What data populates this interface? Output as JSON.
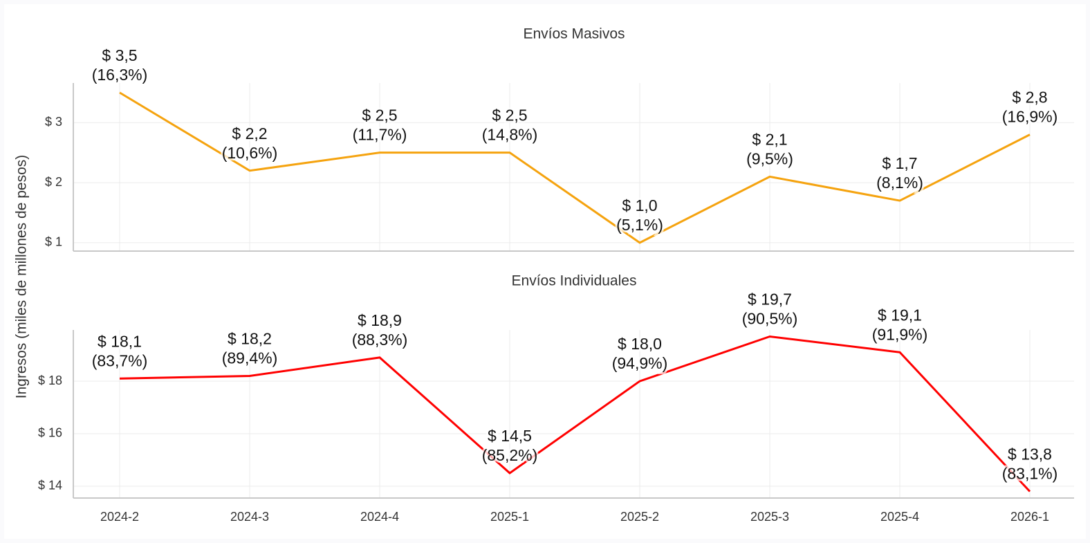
{
  "ylabel": "Ingresos (miles de millones de pesos)",
  "chart_data": [
    {
      "type": "line",
      "title": "Envíos Masivos",
      "categories": [
        "2024-2",
        "2024-3",
        "2024-4",
        "2025-1",
        "2025-2",
        "2025-3",
        "2025-4",
        "2026-1"
      ],
      "series": [
        {
          "name": "Envíos Masivos",
          "color": "#f5a30f",
          "values": [
            3.5,
            2.2,
            2.5,
            2.5,
            1.0,
            2.1,
            1.7,
            2.8
          ],
          "value_labels": [
            "$ 3,5",
            "$ 2,2",
            "$ 2,5",
            "$ 2,5",
            "$ 1,0",
            "$ 2,1",
            "$ 1,7",
            "$ 2,8"
          ],
          "share_labels": [
            "(16,3%)",
            "(10,6%)",
            "(11,7%)",
            "(14,8%)",
            "(5,1%)",
            "(9,5%)",
            "(8,1%)",
            "(16,9%)"
          ]
        }
      ],
      "ylim": [
        0.86,
        3.66
      ],
      "yticks": [
        {
          "value": 1,
          "label": "$ 1"
        },
        {
          "value": 2,
          "label": "$ 2"
        },
        {
          "value": 3,
          "label": "$ 3"
        }
      ],
      "grid": true
    },
    {
      "type": "line",
      "title": "Envíos Individuales",
      "categories": [
        "2024-2",
        "2024-3",
        "2024-4",
        "2025-1",
        "2025-2",
        "2025-3",
        "2025-4",
        "2026-1"
      ],
      "series": [
        {
          "name": "Envíos Individuales",
          "color": "#ff0000",
          "values": [
            18.1,
            18.2,
            18.9,
            14.5,
            18.0,
            19.7,
            19.1,
            13.8
          ],
          "value_labels": [
            "$ 18,1",
            "$ 18,2",
            "$ 18,9",
            "$ 14,5",
            "$ 18,0",
            "$ 19,7",
            "$ 19,1",
            "$ 13,8"
          ],
          "share_labels": [
            "(83,7%)",
            "(89,4%)",
            "(88,3%)",
            "(85,2%)",
            "(94,9%)",
            "(90,5%)",
            "(91,9%)",
            "(83,1%)"
          ]
        }
      ],
      "ylim": [
        13.55,
        19.95
      ],
      "yticks": [
        {
          "value": 14,
          "label": "$ 14"
        },
        {
          "value": 16,
          "label": "$ 16"
        },
        {
          "value": 18,
          "label": "$ 18"
        }
      ],
      "grid": true
    }
  ]
}
